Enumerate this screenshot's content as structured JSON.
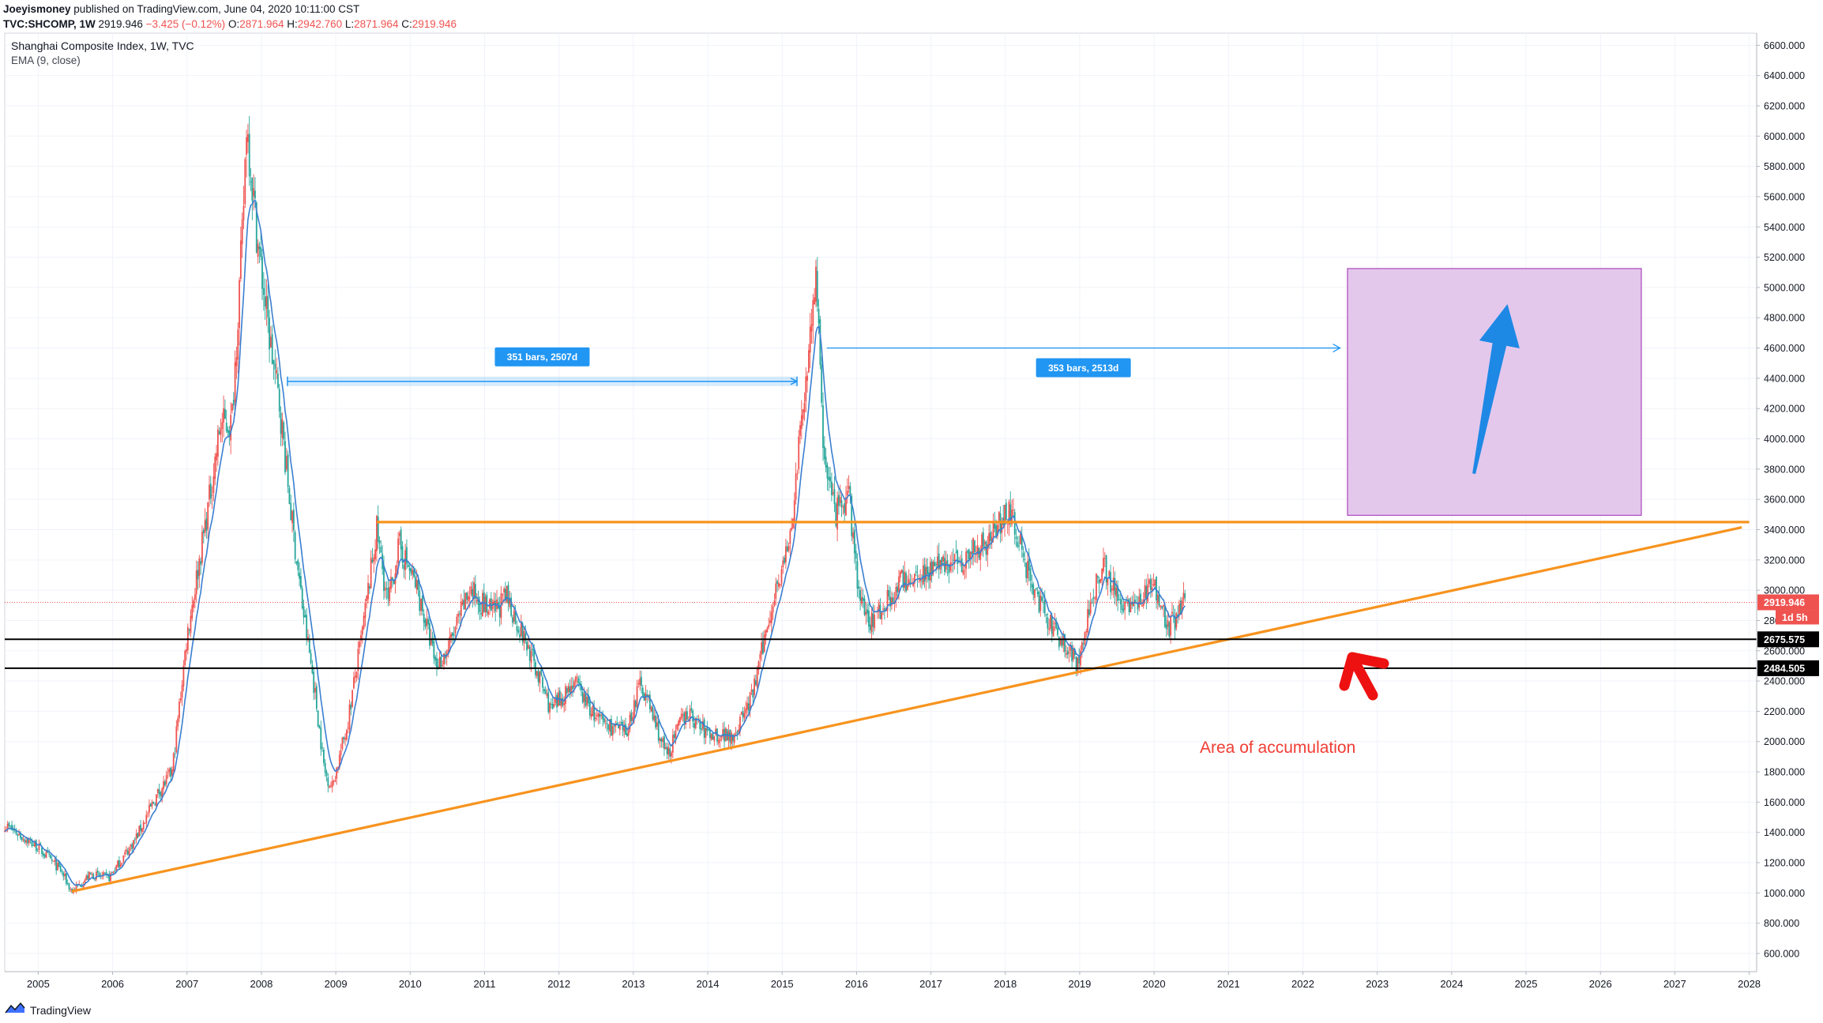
{
  "header": {
    "author": "Joeyismoney",
    "published": " published on TradingView.com, June 04, 2020 10:11:00 CST",
    "symbol": "TVC:SHCOMP, 1W",
    "last": "2919.946",
    "change": "−3.425 (−0.12%)",
    "o_label": "O:",
    "o": "2871.964",
    "h_label": "H:",
    "h": "2942.760",
    "l_label": "L:",
    "l": "2871.964",
    "c_label": "C:",
    "c": "2919.946"
  },
  "legend": {
    "title": "Shanghai Composite Index, 1W, TVC",
    "indicator": "EMA (9, close)"
  },
  "footer": {
    "brand": "TradingView"
  },
  "colors": {
    "up": "#ef5350",
    "down": "#26a69a",
    "ema": "#3a7fd0",
    "trend": "#f7931e",
    "measure": "#2196f3",
    "projection_fill": "#e3c8ec",
    "projection_border": "#9c27b0",
    "arrow_blue": "#1e88e5",
    "arrow_red": "#ee1111",
    "annotation": "#ef3d34"
  },
  "measures": [
    {
      "label": "351 bars, 2507d"
    },
    {
      "label": "353 bars, 2513d"
    }
  ],
  "price_tags": [
    {
      "value": "2919.946",
      "sub": "1d 5h",
      "color": "#ef5350"
    },
    {
      "value": "2675.575",
      "color": "#000000"
    },
    {
      "value": "2484.505",
      "color": "#000000"
    }
  ],
  "annotation": "Area of accumulation",
  "chart_data": {
    "type": "candlestick",
    "title": "Shanghai Composite Index, 1W, TVC",
    "interval": "1W",
    "indicator": "EMA (9, close)",
    "xlim": [
      2004.55,
      2028.1
    ],
    "ylim": [
      480,
      6680
    ],
    "y_ticks": [
      600,
      800,
      1000,
      1200,
      1400,
      1600,
      1800,
      2000,
      2200,
      2400,
      2600,
      2800,
      3000,
      3200,
      3400,
      3600,
      3800,
      4000,
      4200,
      4400,
      4600,
      4800,
      5000,
      5200,
      5400,
      5600,
      5800,
      6000,
      6200,
      6400,
      6600
    ],
    "y_tick_labels": [
      "600.000",
      "800.000",
      "1000.000",
      "1200.000",
      "1400.000",
      "1600.000",
      "1800.000",
      "2000.000",
      "2200.000",
      "2400.000",
      "2600.000",
      "2800.000",
      "3000.000",
      "3200.000",
      "3400.000",
      "3600.000",
      "3800.000",
      "4000.000",
      "4200.000",
      "4400.000",
      "4600.000",
      "4800.000",
      "5000.000",
      "5200.000",
      "5400.000",
      "5600.000",
      "5800.000",
      "6000.000",
      "6200.000",
      "6400.000",
      "6600.000"
    ],
    "x_ticks": [
      "2005",
      "2006",
      "2007",
      "2008",
      "2009",
      "2010",
      "2011",
      "2012",
      "2013",
      "2014",
      "2015",
      "2016",
      "2017",
      "2018",
      "2019",
      "2020",
      "2021",
      "2022",
      "2023",
      "2024",
      "2025",
      "2026",
      "2027",
      "2028"
    ],
    "price_path": [
      [
        2004.55,
        1450
      ],
      [
        2005.0,
        1300
      ],
      [
        2005.3,
        1150
      ],
      [
        2005.45,
        1010
      ],
      [
        2005.7,
        1120
      ],
      [
        2005.95,
        1100
      ],
      [
        2006.3,
        1350
      ],
      [
        2006.6,
        1650
      ],
      [
        2006.8,
        1800
      ],
      [
        2007.0,
        2700
      ],
      [
        2007.3,
        3600
      ],
      [
        2007.45,
        4100
      ],
      [
        2007.6,
        4100
      ],
      [
        2007.75,
        5400
      ],
      [
        2007.8,
        6100
      ],
      [
        2007.95,
        5300
      ],
      [
        2008.1,
        4700
      ],
      [
        2008.25,
        4200
      ],
      [
        2008.4,
        3500
      ],
      [
        2008.55,
        2900
      ],
      [
        2008.7,
        2400
      ],
      [
        2008.85,
        1800
      ],
      [
        2008.95,
        1700
      ],
      [
        2009.15,
        2100
      ],
      [
        2009.35,
        2700
      ],
      [
        2009.55,
        3400
      ],
      [
        2009.7,
        2900
      ],
      [
        2009.85,
        3300
      ],
      [
        2010.1,
        3000
      ],
      [
        2010.35,
        2500
      ],
      [
        2010.5,
        2600
      ],
      [
        2010.8,
        3000
      ],
      [
        2011.1,
        2850
      ],
      [
        2011.3,
        2950
      ],
      [
        2011.6,
        2600
      ],
      [
        2011.9,
        2200
      ],
      [
        2012.2,
        2400
      ],
      [
        2012.5,
        2150
      ],
      [
        2012.9,
        2050
      ],
      [
        2013.1,
        2400
      ],
      [
        2013.45,
        1900
      ],
      [
        2013.7,
        2200
      ],
      [
        2014.0,
        2050
      ],
      [
        2014.35,
        2050
      ],
      [
        2014.6,
        2300
      ],
      [
        2014.9,
        3000
      ],
      [
        2015.1,
        3300
      ],
      [
        2015.3,
        4300
      ],
      [
        2015.45,
        5100
      ],
      [
        2015.55,
        4000
      ],
      [
        2015.7,
        3500
      ],
      [
        2015.9,
        3600
      ],
      [
        2016.05,
        2900
      ],
      [
        2016.2,
        2800
      ],
      [
        2016.6,
        3050
      ],
      [
        2017.0,
        3150
      ],
      [
        2017.4,
        3200
      ],
      [
        2017.8,
        3350
      ],
      [
        2018.05,
        3550
      ],
      [
        2018.25,
        3200
      ],
      [
        2018.55,
        2800
      ],
      [
        2018.8,
        2650
      ],
      [
        2018.98,
        2500
      ],
      [
        2019.15,
        2900
      ],
      [
        2019.3,
        3200
      ],
      [
        2019.5,
        2950
      ],
      [
        2019.75,
        2900
      ],
      [
        2020.0,
        3050
      ],
      [
        2020.2,
        2750
      ],
      [
        2020.42,
        2920
      ]
    ],
    "drawings": {
      "resistance": {
        "y": 3450,
        "from_x": 2009.55,
        "to_x": 2028.0
      },
      "support_line": {
        "from": [
          2005.45,
          1010
        ],
        "to": [
          2027.9,
          3415
        ]
      },
      "hlines": [
        2675.575,
        2484.505,
        2919.946
      ],
      "measure_1": {
        "from": [
          2008.35,
          4380
        ],
        "to": [
          2015.2,
          4380
        ],
        "label": "351 bars, 2507d"
      },
      "measure_2": {
        "from": [
          2015.6,
          4600
        ],
        "to": [
          2022.5,
          4600
        ],
        "label": "353 bars, 2513d"
      },
      "projection_box": {
        "x0": 2022.6,
        "x1": 2026.55,
        "y0": 3495,
        "y1": 5125
      },
      "up_arrow": {
        "from": [
          2024.3,
          3770
        ],
        "to": [
          2024.75,
          4890
        ]
      }
    }
  }
}
